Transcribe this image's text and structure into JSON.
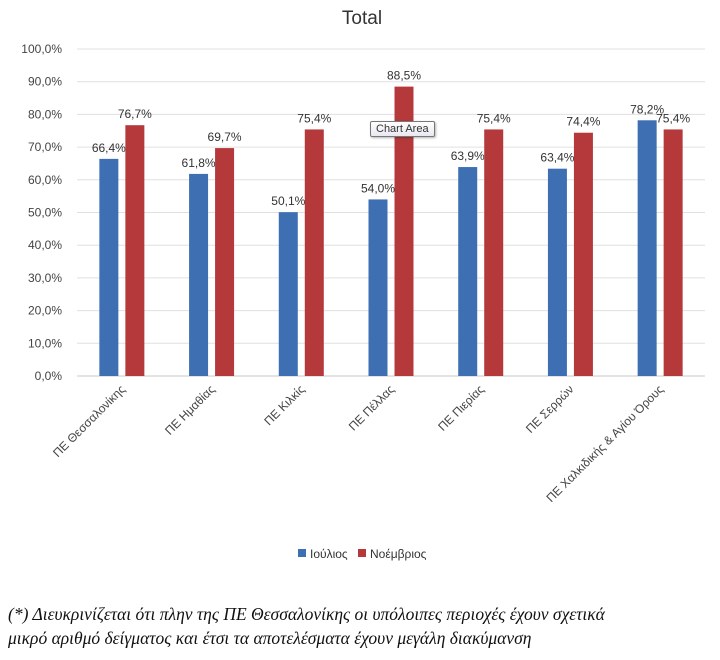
{
  "chart_data": {
    "type": "bar",
    "title": "Total",
    "xlabel": "",
    "ylabel": "",
    "ylim": [
      0,
      100
    ],
    "yticks": [
      "0,0%",
      "10,0%",
      "20,0%",
      "30,0%",
      "40,0%",
      "50,0%",
      "60,0%",
      "70,0%",
      "80,0%",
      "90,0%",
      "100,0%"
    ],
    "grid": true,
    "legend_position": "bottom",
    "categories": [
      "ΠΕ Θεσσαλονίκης",
      "ΠΕ Ημαθίας",
      "ΠΕ Κιλκίς",
      "ΠΕ Πέλλας",
      "ΠΕ Πιερίας",
      "ΠΕ Σερρών",
      "ΠΕ Χαλκιδικής & Αγίου Όρους"
    ],
    "series": [
      {
        "name": "Ιούλιος",
        "color": "#3e6fb3",
        "values": [
          66.4,
          61.8,
          50.1,
          54.0,
          63.9,
          63.4,
          78.2
        ],
        "labels": [
          "66,4%",
          "61,8%",
          "50,1%",
          "54,0%",
          "63,9%",
          "63,4%",
          "78,2%"
        ]
      },
      {
        "name": "Νοέμβριος",
        "color": "#b5393a",
        "values": [
          76.7,
          69.7,
          75.4,
          88.5,
          75.4,
          74.4,
          75.4
        ],
        "labels": [
          "76,7%",
          "69,7%",
          "75,4%",
          "88,5%",
          "75,4%",
          "74,4%",
          "75,4%"
        ]
      }
    ]
  },
  "tooltip": "Chart Area",
  "footnote": {
    "line1": "(*) Διευκρινίζεται ότι πλην της ΠΕ Θεσσαλονίκης  οι υπόλοιπες περιοχές έχουν σχετικά",
    "line2": "μικρό αριθμό δείγματος και έτσι τα αποτελέσματα έχουν μεγάλη διακύμανση"
  }
}
